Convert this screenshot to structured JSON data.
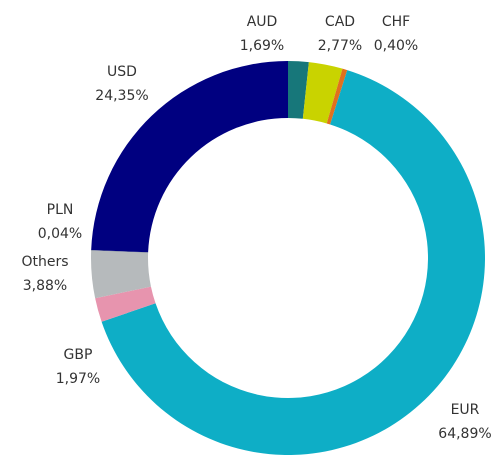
{
  "chart_data": {
    "type": "donut",
    "categories": [
      "AUD",
      "CAD",
      "CHF",
      "EUR",
      "GBP",
      "Others",
      "PLN",
      "USD"
    ],
    "values": [
      1.69,
      2.77,
      0.4,
      64.89,
      1.97,
      3.88,
      0.04,
      24.35
    ],
    "value_labels": [
      "1,69%",
      "2,77%",
      "0,40%",
      "64,89%",
      "1,97%",
      "3,88%",
      "0,04%",
      "24,35%"
    ],
    "colors": [
      "#17777a",
      "#c9d300",
      "#e0701e",
      "#0eaec6",
      "#e794ae",
      "#b6babc",
      "#6f7d8c",
      "#000080"
    ]
  }
}
